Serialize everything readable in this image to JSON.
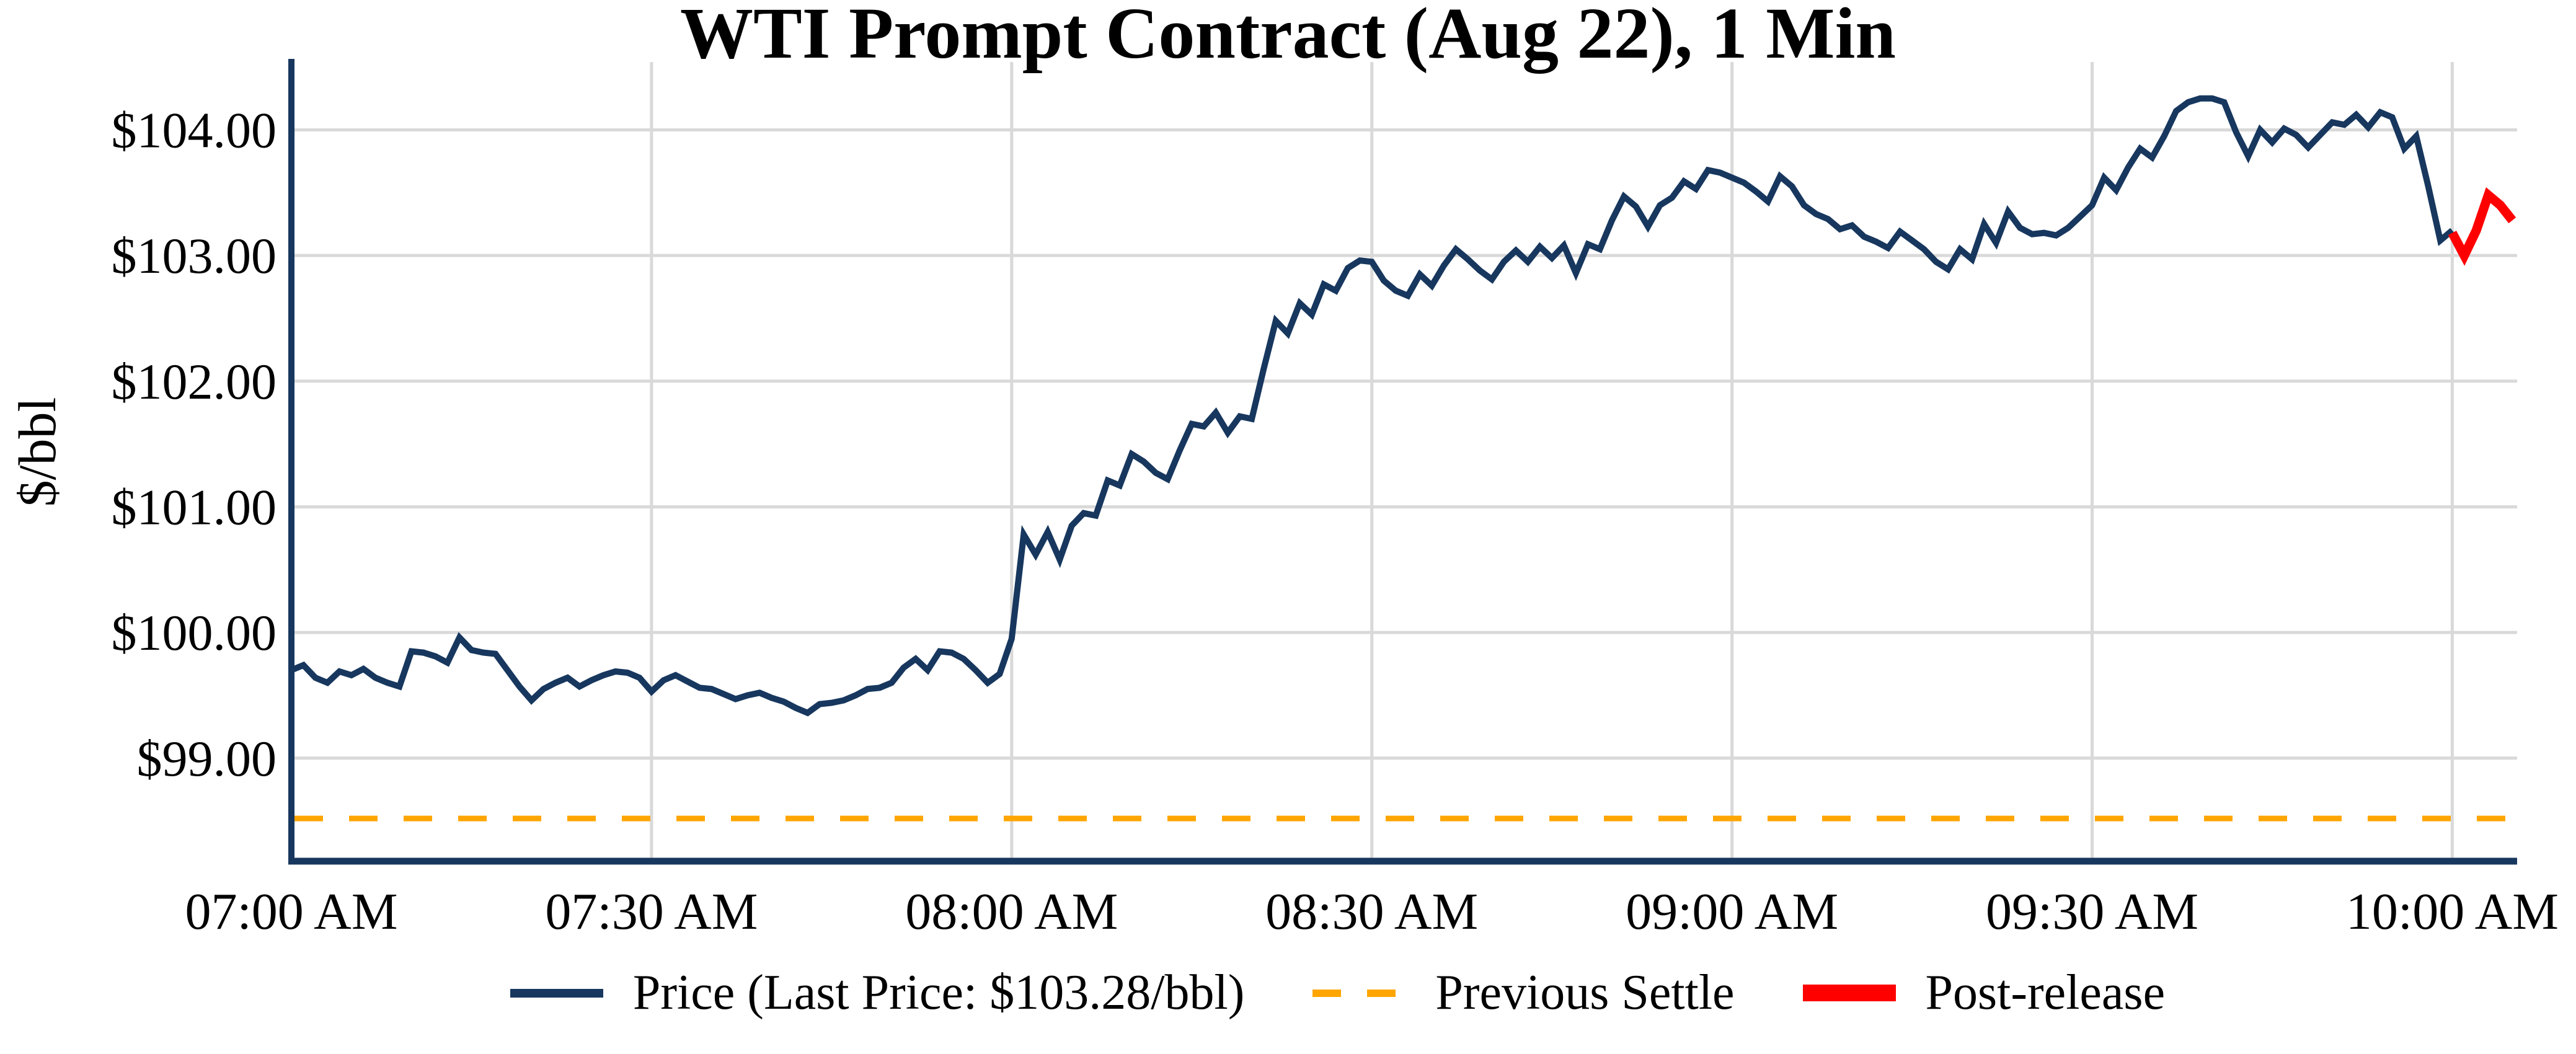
{
  "chart_data": {
    "type": "line",
    "title": "WTI Prompt Contract (Aug 22), 1 Min",
    "ylabel": "$/bbl",
    "xlabel": "",
    "grid": true,
    "background": "#FFFFFF",
    "gridline_color": "#D9D9D9",
    "axis_color": "#17375E",
    "ylim": [
      98.18,
      104.54
    ],
    "xlim_minutes": [
      0,
      185.4
    ],
    "y_ticks": [
      99,
      100,
      101,
      102,
      103,
      104
    ],
    "y_tick_labels": [
      "$99.00",
      "$100.00",
      "$101.00",
      "$102.00",
      "$103.00",
      "$104.00"
    ],
    "x_tick_minutes": [
      0,
      30,
      60,
      90,
      120,
      150,
      180
    ],
    "x_tick_labels": [
      "07:00 AM",
      "07:30 AM",
      "08:00 AM",
      "08:30 AM",
      "09:00 AM",
      "09:30 AM",
      "10:00 AM"
    ],
    "legend_position": "bottom-center",
    "last_price": "$103.28/bbl",
    "previous_settle_value": 98.52,
    "series": [
      {
        "name": "Price (Last Price: $103.28/bbl)",
        "color": "#17375E",
        "style": "solid",
        "line_width": 10,
        "start_minute": 0,
        "interval_minutes": 1,
        "values": [
          99.7,
          99.74,
          99.64,
          99.6,
          99.69,
          99.66,
          99.71,
          99.64,
          99.6,
          99.57,
          99.85,
          99.84,
          99.81,
          99.76,
          99.96,
          99.86,
          99.84,
          99.83,
          99.7,
          99.57,
          99.46,
          99.55,
          99.6,
          99.64,
          99.57,
          99.62,
          99.66,
          99.69,
          99.68,
          99.64,
          99.53,
          99.62,
          99.66,
          99.61,
          99.56,
          99.55,
          99.51,
          99.47,
          99.5,
          99.52,
          99.48,
          99.45,
          99.4,
          99.36,
          99.43,
          99.44,
          99.46,
          99.5,
          99.55,
          99.56,
          99.6,
          99.72,
          99.79,
          99.7,
          99.85,
          99.84,
          99.79,
          99.7,
          99.6,
          99.67,
          99.95,
          100.78,
          100.62,
          100.8,
          100.58,
          100.85,
          100.95,
          100.93,
          101.21,
          101.17,
          101.42,
          101.36,
          101.27,
          101.22,
          101.45,
          101.66,
          101.64,
          101.75,
          101.59,
          101.72,
          101.7,
          102.1,
          102.48,
          102.38,
          102.62,
          102.53,
          102.77,
          102.72,
          102.9,
          102.96,
          102.95,
          102.8,
          102.72,
          102.68,
          102.85,
          102.76,
          102.92,
          103.05,
          102.97,
          102.88,
          102.81,
          102.95,
          103.04,
          102.95,
          103.07,
          102.98,
          103.08,
          102.86,
          103.09,
          103.05,
          103.28,
          103.47,
          103.39,
          103.23,
          103.4,
          103.46,
          103.59,
          103.53,
          103.68,
          103.66,
          103.62,
          103.58,
          103.51,
          103.43,
          103.63,
          103.55,
          103.4,
          103.33,
          103.29,
          103.21,
          103.24,
          103.15,
          103.11,
          103.06,
          103.19,
          103.12,
          103.05,
          102.95,
          102.89,
          103.05,
          102.97,
          103.25,
          103.1,
          103.35,
          103.22,
          103.17,
          103.18,
          103.16,
          103.22,
          103.31,
          103.4,
          103.62,
          103.52,
          103.7,
          103.85,
          103.78,
          103.95,
          104.15,
          104.22,
          104.25,
          104.25,
          104.22,
          103.98,
          103.79,
          104.0,
          103.9,
          104.01,
          103.96,
          103.86,
          103.96,
          104.06,
          104.04,
          104.12,
          104.02,
          104.14,
          104.1,
          103.85,
          103.95,
          103.55,
          103.12,
          103.2
        ]
      },
      {
        "name": "Previous Settle",
        "color": "#FFA500",
        "style": "dashed",
        "line_width": 9,
        "value": 98.52
      },
      {
        "name": "Post-release",
        "color": "#FF0000",
        "style": "solid",
        "line_width": 15,
        "start_minute": 180,
        "interval_minutes": 1,
        "values": [
          103.18,
          103.0,
          103.2,
          103.48,
          103.4,
          103.28
        ]
      }
    ]
  }
}
